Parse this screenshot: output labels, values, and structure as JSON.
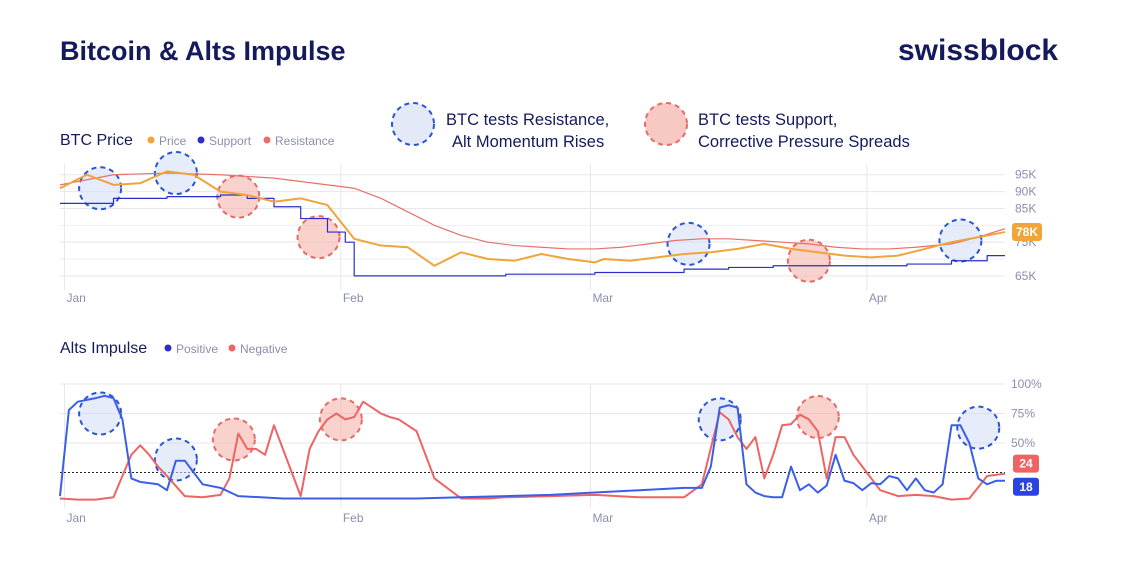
{
  "header": {
    "title": "Bitcoin & Alts Impulse",
    "brand": "swissblock"
  },
  "legend_top": {
    "resistance_note": [
      "BTC tests Resistance,",
      "Alt Momentum Rises"
    ],
    "support_note": [
      "BTC tests Support,",
      "Corrective Pressure Spreads"
    ]
  },
  "colors": {
    "navy": "#141a5c",
    "price": "#f0a43a",
    "support": "#2b2fc8",
    "resistance": "#e8706a",
    "positive": "#3b5ee8",
    "negative": "#ee6464",
    "blue_circle": "#2a54d6",
    "red_circle": "#e56b66"
  },
  "chart_data": [
    {
      "type": "line",
      "title": "BTC Price",
      "x_ticks": [
        "Jan",
        "Feb",
        "Mar",
        "Apr"
      ],
      "y_ticks": [
        "95K",
        "90K",
        "85K",
        "75K",
        "65K"
      ],
      "ylim": [
        62000,
        97000
      ],
      "last_price_label": "78K",
      "series": [
        {
          "name": "Price",
          "color": "#f0a43a",
          "x": [
            0,
            3,
            6,
            9,
            12,
            15,
            18,
            21,
            24,
            27,
            30,
            33,
            36,
            39,
            42,
            45,
            48,
            51,
            54,
            57,
            60,
            61,
            64,
            67,
            70,
            73,
            76,
            79,
            82,
            85,
            88,
            91,
            94,
            97,
            100,
            103,
            106
          ],
          "values": [
            91000,
            95000,
            92000,
            92500,
            96000,
            95000,
            90000,
            89000,
            87000,
            88000,
            86000,
            76000,
            74000,
            73500,
            68000,
            72000,
            70000,
            69500,
            71500,
            70000,
            69000,
            70000,
            69500,
            70500,
            71500,
            72000,
            73000,
            74500,
            73000,
            72000,
            71000,
            70500,
            71000,
            73000,
            75000,
            76500,
            78000
          ]
        },
        {
          "name": "Support",
          "color": "#2b2fc8",
          "x": [
            0,
            6,
            12,
            18,
            21,
            24,
            27,
            30,
            32,
            33,
            36,
            40,
            45,
            50,
            55,
            60,
            65,
            70,
            75,
            80,
            85,
            90,
            95,
            100,
            104,
            106
          ],
          "values": [
            86500,
            88000,
            88500,
            89000,
            88000,
            85500,
            82000,
            78000,
            75000,
            65000,
            65000,
            65000,
            65000,
            65500,
            65500,
            66000,
            66000,
            67000,
            67500,
            68000,
            68000,
            68000,
            68500,
            69500,
            71000,
            71000
          ]
        },
        {
          "name": "Resistance",
          "color": "#e8706a",
          "x": [
            0,
            6,
            12,
            18,
            24,
            30,
            33,
            36,
            39,
            42,
            45,
            48,
            51,
            54,
            57,
            60,
            63,
            66,
            69,
            72,
            75,
            78,
            81,
            84,
            87,
            90,
            93,
            96,
            100,
            103,
            106
          ],
          "values": [
            92000,
            95000,
            95500,
            95000,
            94000,
            92000,
            91000,
            88000,
            84000,
            80000,
            77000,
            75000,
            74000,
            73500,
            73000,
            73000,
            73500,
            74500,
            75500,
            76000,
            76000,
            75500,
            75000,
            74500,
            73500,
            73000,
            73000,
            73500,
            74500,
            76500,
            79000
          ]
        }
      ],
      "annotations": [
        {
          "type": "blue",
          "x": 4.5,
          "value": 91000
        },
        {
          "type": "blue",
          "x": 13,
          "value": 95500
        },
        {
          "type": "red",
          "x": 20,
          "value": 88500
        },
        {
          "type": "red",
          "x": 29,
          "value": 76500
        },
        {
          "type": "blue",
          "x": 70.5,
          "value": 74500
        },
        {
          "type": "red",
          "x": 84,
          "value": 69500
        },
        {
          "type": "blue",
          "x": 101,
          "value": 75500
        }
      ]
    },
    {
      "type": "line",
      "title": "Alts Impulse",
      "x_ticks": [
        "Jan",
        "Feb",
        "Mar",
        "Apr"
      ],
      "y_ticks": [
        "100%",
        "75%",
        "50%"
      ],
      "ylim": [
        0,
        100
      ],
      "reference_line": 25,
      "end_labels": {
        "negative": "24",
        "positive": "18"
      },
      "series": [
        {
          "name": "Positive",
          "color": "#3b5ee8",
          "x": [
            0,
            1,
            2,
            4,
            5,
            6,
            7,
            8,
            9,
            10,
            11,
            12,
            13,
            14,
            15,
            16,
            18,
            20,
            25,
            30,
            35,
            40,
            45,
            50,
            55,
            60,
            65,
            70,
            72,
            73,
            74,
            75,
            76,
            77,
            78,
            79,
            80,
            81,
            82,
            83,
            84,
            85,
            86,
            87,
            88,
            89,
            90,
            91,
            92,
            93,
            94,
            95,
            96,
            97,
            98,
            99,
            100,
            101,
            102,
            103,
            104,
            105,
            106
          ],
          "values": [
            5,
            78,
            85,
            88,
            90,
            88,
            70,
            20,
            17,
            16,
            15,
            10,
            35,
            35,
            25,
            15,
            12,
            5,
            3,
            3,
            3,
            3,
            4,
            5,
            6,
            8,
            10,
            12,
            12,
            30,
            80,
            82,
            80,
            15,
            8,
            5,
            4,
            4,
            30,
            10,
            15,
            8,
            14,
            40,
            18,
            16,
            10,
            16,
            15,
            22,
            20,
            10,
            20,
            10,
            8,
            15,
            65,
            65,
            50,
            20,
            15,
            18,
            18
          ]
        },
        {
          "name": "Negative",
          "color": "#ee6464",
          "x": [
            0,
            2,
            4,
            6,
            8,
            9,
            10,
            11,
            12,
            14,
            16,
            18,
            19,
            20,
            21,
            22,
            23,
            24,
            25,
            26,
            27,
            28,
            29,
            30,
            31,
            32,
            33,
            34,
            35,
            36,
            37,
            38,
            40,
            42,
            45,
            48,
            50,
            55,
            60,
            65,
            70,
            72,
            74,
            75,
            76,
            77,
            78,
            79,
            80,
            81,
            82,
            83,
            84,
            85,
            86,
            87,
            88,
            89,
            90,
            92,
            94,
            96,
            98,
            100,
            102,
            104,
            106
          ],
          "values": [
            3,
            2,
            2,
            4,
            40,
            48,
            40,
            30,
            22,
            5,
            4,
            6,
            20,
            58,
            45,
            45,
            40,
            65,
            45,
            25,
            5,
            45,
            60,
            70,
            75,
            70,
            72,
            85,
            80,
            75,
            72,
            70,
            60,
            20,
            3,
            3,
            4,
            5,
            6,
            4,
            4,
            15,
            76,
            70,
            55,
            45,
            55,
            20,
            40,
            65,
            66,
            74,
            70,
            60,
            20,
            55,
            55,
            40,
            30,
            10,
            5,
            6,
            5,
            2,
            3,
            22,
            24
          ]
        }
      ],
      "annotations": [
        {
          "type": "blue",
          "x": 4.5,
          "value": 75
        },
        {
          "type": "blue",
          "x": 13,
          "value": 36
        },
        {
          "type": "red",
          "x": 19.5,
          "value": 53
        },
        {
          "type": "red",
          "x": 31.5,
          "value": 70
        },
        {
          "type": "blue",
          "x": 74,
          "value": 70
        },
        {
          "type": "red",
          "x": 85,
          "value": 72
        },
        {
          "type": "blue",
          "x": 103,
          "value": 63
        }
      ]
    }
  ]
}
